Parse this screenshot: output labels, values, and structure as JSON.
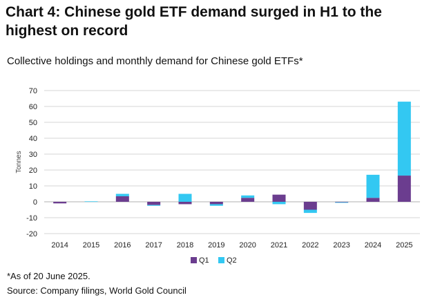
{
  "header": {
    "title": "Chart 4: Chinese gold ETF demand surged in H1 to the highest on record",
    "subtitle": "Collective holdings and monthly demand for Chinese gold ETFs*"
  },
  "footer": {
    "note": "*As of 20 June 2025.",
    "source": "Source: Company filings, World Gold Council"
  },
  "colors": {
    "q1": "#6b3d8f",
    "q2": "#33c8f2",
    "grid": "#d4d4d4",
    "axis": "#b0b0b0"
  },
  "chart_data": {
    "type": "bar",
    "stacked": true,
    "categories": [
      "2014",
      "2015",
      "2016",
      "2017",
      "2018",
      "2019",
      "2020",
      "2021",
      "2022",
      "2023",
      "2024",
      "2025"
    ],
    "series": [
      {
        "name": "Q1",
        "values": [
          -1,
          0,
          3.5,
          -2,
          -1.5,
          -1.5,
          2.5,
          4.5,
          -5,
          -0.3,
          2.5,
          16.5
        ]
      },
      {
        "name": "Q2",
        "values": [
          0,
          0.3,
          1.5,
          -0.5,
          5,
          -1,
          1.5,
          -1.5,
          -2,
          -0.3,
          14.5,
          46.5
        ]
      }
    ],
    "ylabel": "Tonnes",
    "xlabel": "",
    "ylim": [
      -20,
      70
    ],
    "yticks": [
      70,
      60,
      50,
      40,
      30,
      20,
      10,
      0,
      -10,
      -20
    ],
    "grid": true,
    "legend": "bottom-center"
  }
}
